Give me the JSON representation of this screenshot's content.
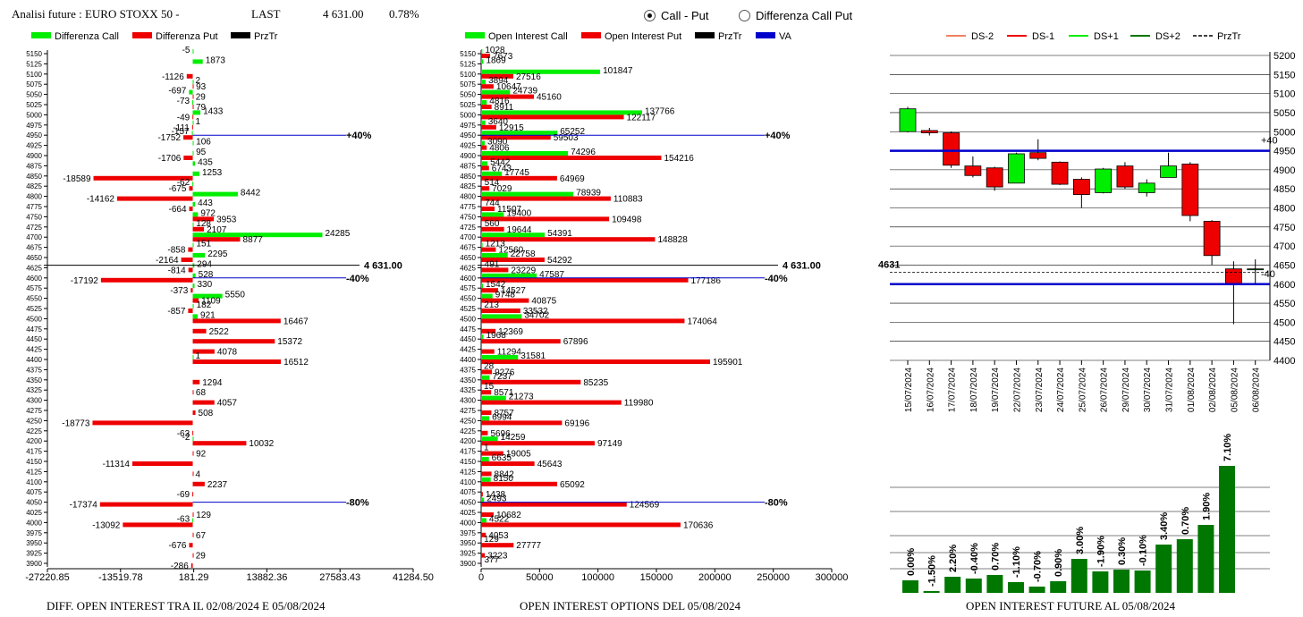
{
  "header": {
    "title": "Analisi future : EURO STOXX 50 -",
    "last_label": "LAST",
    "last_value": "4 631.00",
    "change": "0.78%"
  },
  "mode_toggle": {
    "option1": "Call - Put",
    "option2": "Differenza Call Put",
    "selected": "Call - Put"
  },
  "colors": {
    "green": "#00ee00",
    "red": "#ee0000",
    "darkgreen": "#007700",
    "blue": "#0000cc",
    "black": "#000000"
  },
  "left_panel": {
    "legend": [
      "Differenza Call",
      "Differenza Put",
      "PrzTr"
    ],
    "footer": "DIFF. OPEN INTEREST TRA IL 02/08/2024 E 05/08/2024"
  },
  "middle_panel": {
    "legend": [
      "Open Interest Call",
      "Open Interest Put",
      "PrzTr",
      "VA"
    ],
    "footer": "OPEN INTEREST OPTIONS DEL 05/08/2024"
  },
  "right_panel": {
    "legend": [
      "DS-2",
      "DS-1",
      "DS+1",
      "DS+2",
      "PrzTr"
    ],
    "footer": "OPEN INTEREST FUTURE AL 05/08/2024"
  },
  "chart_data": [
    {
      "type": "bar",
      "orientation": "horizontal",
      "categories": [
        5150,
        5125,
        5100,
        5075,
        5050,
        5025,
        5000,
        4975,
        4950,
        4925,
        4900,
        4875,
        4850,
        4825,
        4800,
        4775,
        4750,
        4725,
        4700,
        4675,
        4650,
        4625,
        4600,
        4575,
        4550,
        4525,
        4500,
        4475,
        4450,
        4425,
        4400,
        4375,
        4350,
        4325,
        4300,
        4275,
        4250,
        4225,
        4200,
        4175,
        4150,
        4125,
        4100,
        4075,
        4050,
        4025,
        4000,
        3975,
        3950,
        3925,
        3900
      ],
      "series": [
        {
          "name": "Differenza Call",
          "values": [
            -5,
            1873,
            0,
            2,
            -697,
            -73,
            1433,
            1,
            -157,
            106,
            95,
            435,
            1253,
            -62,
            8442,
            443,
            972,
            128,
            24285,
            151,
            2295,
            294,
            528,
            330,
            5550,
            182,
            921,
            0,
            0,
            0,
            1,
            0,
            0,
            0,
            0,
            0,
            0,
            0,
            -2,
            0,
            0,
            0,
            0,
            0,
            0,
            0,
            -63,
            0,
            0,
            0,
            0
          ]
        },
        {
          "name": "Differenza Put",
          "values": [
            0,
            0,
            -1126,
            93,
            29,
            79,
            -49,
            -111,
            -1752,
            0,
            -1706,
            0,
            -18589,
            -675,
            -14162,
            -664,
            3953,
            2107,
            8877,
            -858,
            -2164,
            -814,
            -17192,
            -373,
            1109,
            -857,
            16467,
            2522,
            15372,
            4078,
            16512,
            0,
            1294,
            68,
            4057,
            508,
            -18773,
            -63,
            10032,
            92,
            -11314,
            4,
            2237,
            -69,
            -17374,
            129,
            -13092,
            67,
            -676,
            29,
            -286
          ]
        }
      ],
      "xticks": [
        -27220.85,
        -13519.78,
        181.29,
        13882.36,
        27583.43,
        41284.5
      ],
      "xlim": [
        -27220.85,
        41284.5
      ],
      "annotations": [
        {
          "price": 4950,
          "label": "+40%"
        },
        {
          "price": 4631,
          "label": "4 631.00"
        },
        {
          "price": 4600,
          "label": "-40%"
        },
        {
          "price": 4050,
          "label": "-80%"
        }
      ]
    },
    {
      "type": "bar",
      "orientation": "horizontal",
      "categories": [
        5150,
        5125,
        5100,
        5075,
        5050,
        5025,
        5000,
        4975,
        4950,
        4925,
        4900,
        4875,
        4850,
        4825,
        4800,
        4775,
        4750,
        4725,
        4700,
        4675,
        4650,
        4625,
        4600,
        4575,
        4550,
        4525,
        4500,
        4475,
        4450,
        4425,
        4400,
        4375,
        4350,
        4325,
        4300,
        4275,
        4250,
        4225,
        4200,
        4175,
        4150,
        4125,
        4100,
        4075,
        4050,
        4025,
        4000,
        3975,
        3950,
        3925,
        3900
      ],
      "series": [
        {
          "name": "Open Interest Call",
          "values": [
            1028,
            1869,
            101847,
            3894,
            24739,
            4816,
            137766,
            3640,
            65252,
            3090,
            74296,
            5442,
            17745,
            514,
            78939,
            744,
            19400,
            560,
            54391,
            1213,
            22758,
            491,
            47587,
            1542,
            9748,
            213,
            34702,
            0,
            1968,
            0,
            31581,
            28,
            7237,
            15,
            21273,
            0,
            6994,
            0,
            14259,
            1,
            6635,
            0,
            8150,
            0,
            2493,
            0,
            4522,
            0,
            129,
            0,
            377
          ]
        },
        {
          "name": "Open Interest Put",
          "values": [
            7673,
            0,
            27516,
            10647,
            45160,
            8911,
            122117,
            12915,
            59503,
            4806,
            154216,
            6743,
            64969,
            7029,
            110883,
            11507,
            109498,
            19644,
            148828,
            12560,
            54292,
            23229,
            177186,
            14527,
            40875,
            33532,
            174064,
            12369,
            67896,
            11294,
            195901,
            9276,
            85235,
            8571,
            119980,
            8757,
            69196,
            5696,
            97149,
            19005,
            45643,
            8842,
            65092,
            1438,
            124569,
            10682,
            170636,
            4053,
            27777,
            3223,
            0
          ]
        }
      ],
      "xticks": [
        0,
        50000,
        100000,
        150000,
        200000,
        250000,
        300000
      ],
      "xlim": [
        0,
        300000
      ],
      "annotations": [
        {
          "price": 4950,
          "label": "+40%"
        },
        {
          "price": 4631,
          "label": "4 631.00"
        },
        {
          "price": 4600,
          "label": "-40%"
        },
        {
          "price": 4050,
          "label": "-80%"
        }
      ]
    },
    {
      "type": "candlestick",
      "x": [
        "15/07/2024",
        "16/07/2024",
        "17/07/2024",
        "18/07/2024",
        "19/07/2024",
        "22/07/2024",
        "23/07/2024",
        "24/07/2024",
        "25/07/2024",
        "26/07/2024",
        "29/07/2024",
        "30/07/2024",
        "31/07/2024",
        "01/08/2024",
        "02/08/2024",
        "05/08/2024",
        "06/08/2024"
      ],
      "candles": [
        {
          "open": 5000,
          "high": 5065,
          "low": 4998,
          "close": 5060
        },
        {
          "open": 5003,
          "high": 5010,
          "low": 4990,
          "close": 4997
        },
        {
          "open": 4997,
          "high": 5000,
          "low": 4905,
          "close": 4912
        },
        {
          "open": 4910,
          "high": 4935,
          "low": 4880,
          "close": 4885
        },
        {
          "open": 4905,
          "high": 4908,
          "low": 4845,
          "close": 4855
        },
        {
          "open": 4865,
          "high": 4945,
          "low": 4865,
          "close": 4942
        },
        {
          "open": 4945,
          "high": 4980,
          "low": 4925,
          "close": 4930
        },
        {
          "open": 4920,
          "high": 4922,
          "low": 4860,
          "close": 4862
        },
        {
          "open": 4875,
          "high": 4880,
          "low": 4800,
          "close": 4835
        },
        {
          "open": 4840,
          "high": 4905,
          "low": 4838,
          "close": 4902
        },
        {
          "open": 4910,
          "high": 4920,
          "low": 4850,
          "close": 4855
        },
        {
          "open": 4840,
          "high": 4875,
          "low": 4830,
          "close": 4865
        },
        {
          "open": 4880,
          "high": 4945,
          "low": 4880,
          "close": 4910
        },
        {
          "open": 4915,
          "high": 4920,
          "low": 4765,
          "close": 4780
        },
        {
          "open": 4765,
          "high": 4768,
          "low": 4650,
          "close": 4675
        },
        {
          "open": 4640,
          "high": 4660,
          "low": 4495,
          "close": 4600
        },
        {
          "open": 4640,
          "high": 4665,
          "low": 4600,
          "close": 4640
        }
      ],
      "yticks": [
        5200,
        5150,
        5100,
        5050,
        5000,
        4950,
        4900,
        4850,
        4800,
        4750,
        4700,
        4650,
        4600,
        4550,
        4500,
        4450,
        4400
      ],
      "ylim": [
        4400,
        5200
      ],
      "levels": [
        {
          "price": 4950,
          "label": "+40"
        },
        {
          "price": 4600,
          "label": "-40"
        },
        {
          "price": 4631,
          "label": "4631"
        }
      ]
    },
    {
      "type": "bar",
      "values": [
        0.0,
        -1.5,
        2.2,
        -0.4,
        0.7,
        -1.1,
        -0.7,
        0.9,
        3.0,
        -1.9,
        0.3,
        -0.1,
        3.4,
        0.7,
        1.9,
        7.1
      ],
      "labels": [
        "0.00%",
        "-1.50%",
        "2.20%",
        "-0.40%",
        "0.70%",
        "-1.10%",
        "-0.70%",
        "0.90%",
        "3.00%",
        "-1.90%",
        "0.30%",
        "-0.10%",
        "3.40%",
        "0.70%",
        "1.90%",
        "7.10%"
      ],
      "bar_heights_relative": [
        14,
        2,
        18,
        16,
        20,
        12,
        7,
        13,
        38,
        24,
        26,
        25,
        54,
        60,
        76,
        142
      ]
    }
  ]
}
